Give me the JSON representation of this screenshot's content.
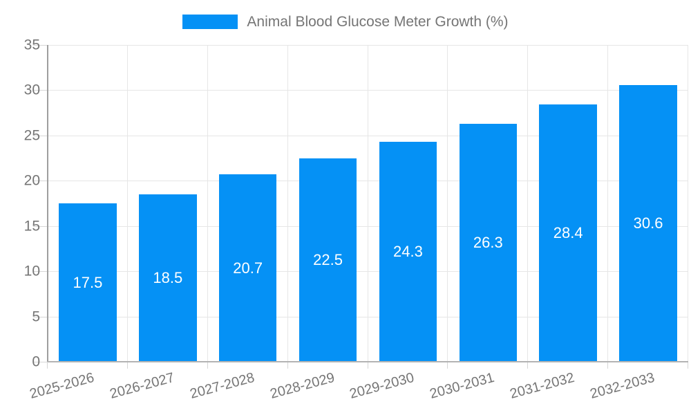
{
  "legend": {
    "label": "Animal Blood Glucose Meter Growth (%)"
  },
  "chart_data": {
    "type": "bar",
    "title": "Animal Blood Glucose Meter Growth (%)",
    "categories": [
      "2025-2026",
      "2026-2027",
      "2027-2028",
      "2028-2029",
      "2029-2030",
      "2030-2031",
      "2031-2032",
      "2032-2033"
    ],
    "values": [
      17.5,
      18.5,
      20.7,
      22.5,
      24.3,
      26.3,
      28.4,
      30.6
    ],
    "value_labels": [
      "17.5",
      "18.5",
      "20.7",
      "22.5",
      "24.3",
      "26.3",
      "28.4",
      "30.6"
    ],
    "xlabel": "",
    "ylabel": "",
    "ylim": [
      0,
      35
    ],
    "ytick_step": 5,
    "ytick_labels": [
      "0",
      "5",
      "10",
      "15",
      "20",
      "25",
      "30",
      "35"
    ],
    "grid": true,
    "legend_position": "top-center",
    "bar_width_fraction": 0.72,
    "x_label_rotation_deg": -15,
    "colors": {
      "bar": "#0591f5",
      "grid": "#e6e6e6",
      "axis_line": "#9e9e9e",
      "baseline": "#b3b3b3",
      "tick": "#d6d6d6",
      "label_text": "#757575",
      "value_text": "#ffffff"
    }
  }
}
